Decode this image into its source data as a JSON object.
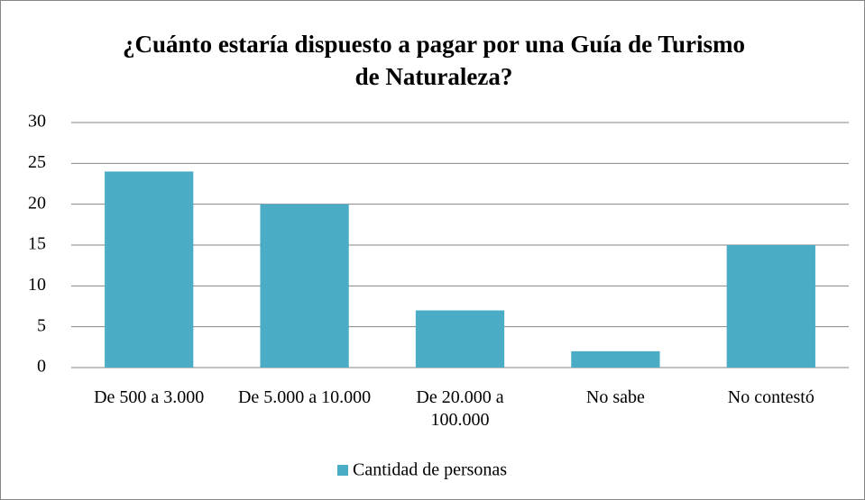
{
  "chart_data": {
    "type": "bar",
    "title": "¿Cuánto estaría dispuesto a pagar por una Guía de Turismo de Naturaleza?",
    "categories": [
      "De 500 a 3.000",
      "De 5.000 a 10.000",
      "De 20.000 a 100.000",
      "No sabe",
      "No contestó"
    ],
    "series": [
      {
        "name": "Cantidad de personas",
        "color": "#4bacc6",
        "values": [
          24,
          20,
          7,
          2,
          15
        ]
      }
    ],
    "ylim": [
      0,
      30
    ],
    "yticks": [
      0,
      5,
      10,
      15,
      20,
      25,
      30
    ],
    "grid": true,
    "legend": "bottom"
  }
}
